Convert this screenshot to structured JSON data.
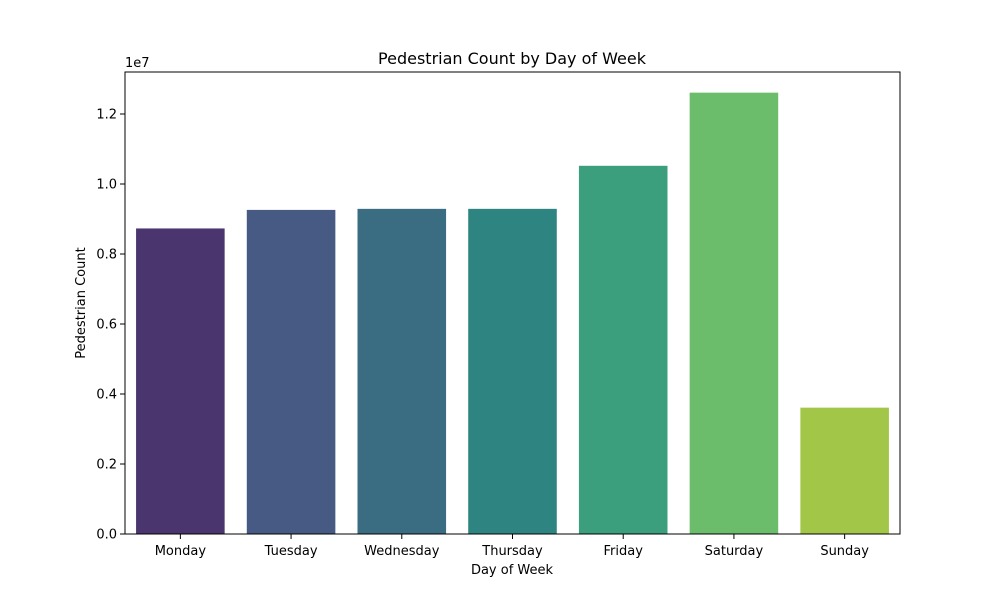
{
  "chart_data": {
    "type": "bar",
    "title": "Pedestrian Count by Day of Week",
    "xlabel": "Day of Week",
    "ylabel": "Pedestrian Count",
    "y_offset_label": "1e7",
    "categories": [
      "Monday",
      "Tuesday",
      "Wednesday",
      "Thursday",
      "Friday",
      "Saturday",
      "Sunday"
    ],
    "values": [
      8730000,
      9260000,
      9290000,
      9290000,
      10520000,
      12610000,
      3610000
    ],
    "colors": [
      "#4a356f",
      "#465a83",
      "#3a6d82",
      "#2e8480",
      "#3b9e7c",
      "#6bbd6b",
      "#a2c748"
    ],
    "ylim": [
      0,
      13200000
    ],
    "yticks": [
      0,
      2000000,
      4000000,
      6000000,
      8000000,
      10000000,
      12000000
    ],
    "ytick_labels": [
      "0.0",
      "0.2",
      "0.4",
      "0.6",
      "0.8",
      "1.0",
      "1.2"
    ],
    "grid": false,
    "legend": "none"
  }
}
